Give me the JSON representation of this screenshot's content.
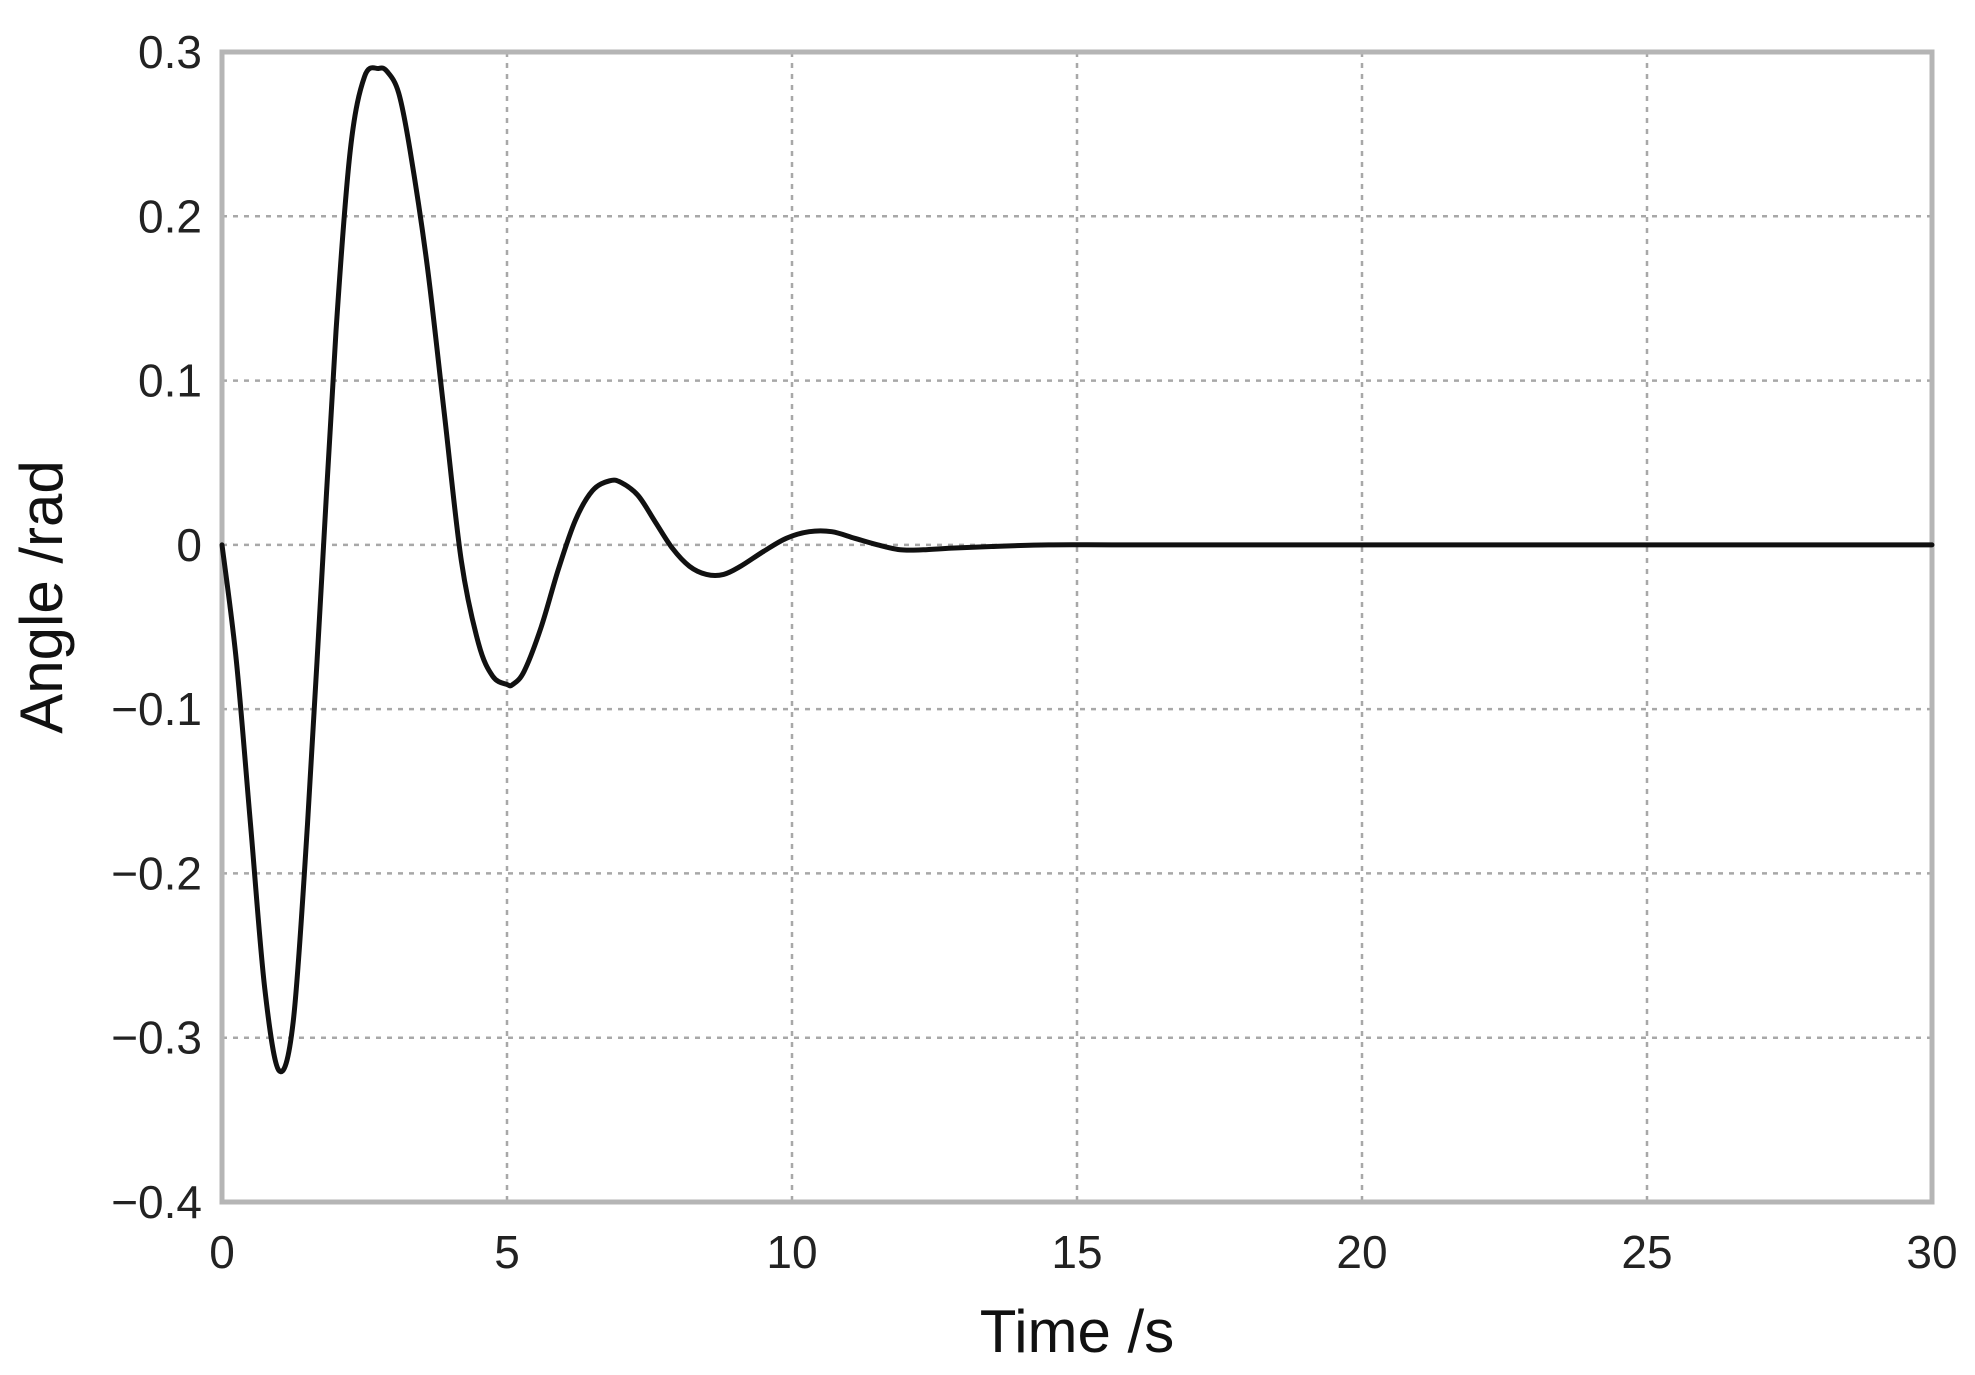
{
  "chart_data": {
    "type": "line",
    "title": "",
    "xlabel": "Time /s",
    "ylabel": "Angle /rad",
    "xlim": [
      0,
      30
    ],
    "ylim": [
      -0.4,
      0.3
    ],
    "xticks": [
      0,
      5,
      10,
      15,
      20,
      25,
      30
    ],
    "xtick_labels": [
      "0",
      "5",
      "10",
      "15",
      "20",
      "25",
      "30"
    ],
    "yticks": [
      0.3,
      0.2,
      0.1,
      0,
      -0.1,
      -0.2,
      -0.3,
      -0.4
    ],
    "ytick_labels": [
      "0.3",
      "0.2",
      "0.1",
      "0",
      "−0.1",
      "−0.2",
      "−0.3",
      "−0.4"
    ],
    "grid": true,
    "line_color": "#111111",
    "series": [
      {
        "x": [
          0,
          0.25,
          0.5,
          0.75,
          1.0,
          1.25,
          1.5,
          1.75,
          2.0,
          2.25,
          2.5,
          2.75,
          2.9,
          3.1,
          3.3,
          3.6,
          3.9,
          4.2,
          4.5,
          4.75,
          5.0,
          5.1,
          5.3,
          5.6,
          5.9,
          6.2,
          6.5,
          6.8,
          7.0,
          7.3,
          7.6,
          7.9,
          8.2,
          8.5,
          8.8,
          9.1,
          9.5,
          9.9,
          10.3,
          10.7,
          11.1,
          11.5,
          11.9,
          12.3,
          12.8,
          13.5,
          14.5,
          16,
          20,
          25,
          30
        ],
        "y": [
          0,
          -0.07,
          -0.17,
          -0.27,
          -0.32,
          -0.29,
          -0.17,
          -0.02,
          0.13,
          0.24,
          0.285,
          0.29,
          0.288,
          0.275,
          0.24,
          0.17,
          0.08,
          -0.01,
          -0.06,
          -0.08,
          -0.085,
          -0.085,
          -0.077,
          -0.05,
          -0.015,
          0.015,
          0.033,
          0.039,
          0.038,
          0.03,
          0.014,
          -0.002,
          -0.013,
          -0.018,
          -0.018,
          -0.013,
          -0.004,
          0.004,
          0.008,
          0.008,
          0.004,
          0.0,
          -0.003,
          -0.003,
          -0.002,
          -0.001,
          0,
          0,
          0,
          0,
          0
        ]
      }
    ]
  }
}
